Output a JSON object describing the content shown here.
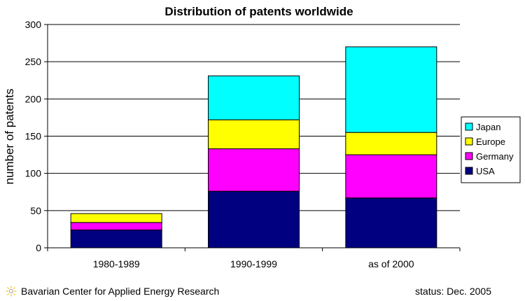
{
  "colors": {
    "USA": "#000080",
    "Germany": "#ff00ff",
    "Europe": "#ffff00",
    "Japan": "#00ffff",
    "grid": "#000000",
    "axis": "#000000"
  },
  "chart_data": {
    "type": "bar",
    "stacked": true,
    "title": "Distribution of patents worldwide",
    "xlabel": "",
    "ylabel": "number of patents",
    "ylim": [
      0,
      300
    ],
    "yticks": [
      0,
      50,
      100,
      150,
      200,
      250,
      300
    ],
    "grid": true,
    "legend_position": "right",
    "categories": [
      "1980-1989",
      "1990-1999",
      "as of 2000"
    ],
    "series": [
      {
        "name": "USA",
        "values": [
          24,
          76,
          67
        ]
      },
      {
        "name": "Germany",
        "values": [
          10,
          57,
          58
        ]
      },
      {
        "name": "Europe",
        "values": [
          12,
          39,
          30
        ]
      },
      {
        "name": "Japan",
        "values": [
          0,
          59,
          115
        ]
      }
    ],
    "legend_order": [
      "Japan",
      "Europe",
      "Germany",
      "USA"
    ]
  },
  "footer": {
    "credit": "Bavarian Center for Applied Energy Research",
    "status": "status: Dec. 2005",
    "logo_icon": "sun-icon"
  }
}
